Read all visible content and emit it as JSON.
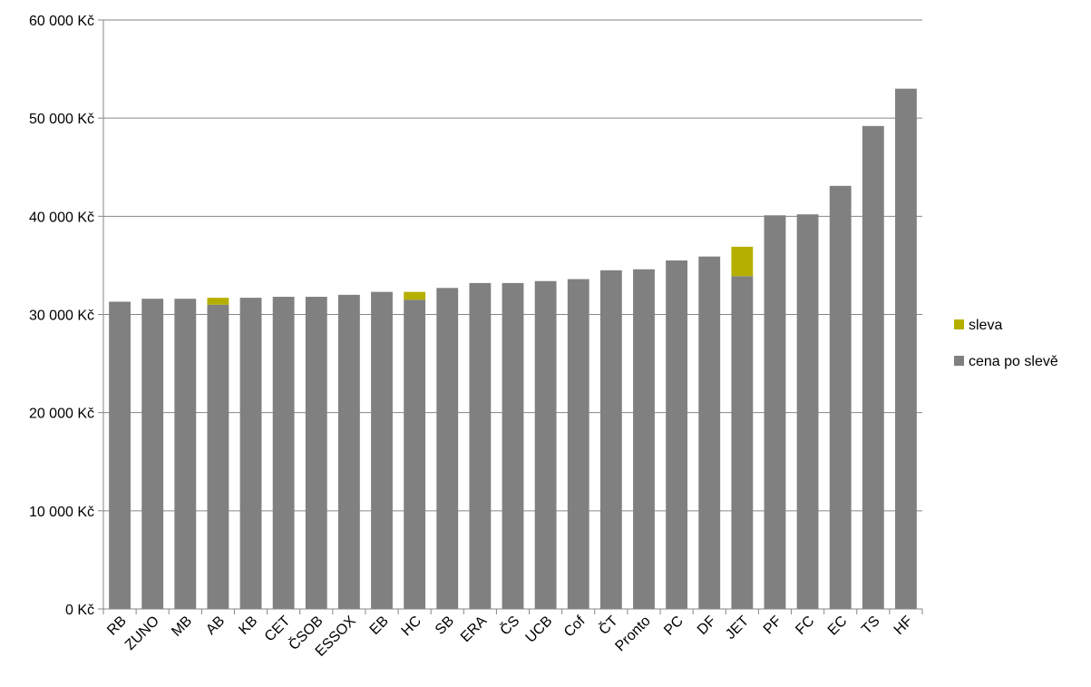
{
  "chart_data": {
    "type": "bar",
    "stacked": true,
    "categories": [
      "RB",
      "ZUNO",
      "MB",
      "AB",
      "KB",
      "CET",
      "ČSOB",
      "ESSOX",
      "EB",
      "HC",
      "SB",
      "ERA",
      "ČS",
      "UCB",
      "Cof",
      "ČT",
      "Pronto",
      "PC",
      "DF",
      "JET",
      "PF",
      "FC",
      "EC",
      "TS",
      "HF"
    ],
    "series": [
      {
        "name": "cena po slevě",
        "color": "#808080",
        "values": [
          31300,
          31600,
          31600,
          31000,
          31700,
          31800,
          31800,
          32000,
          32300,
          31500,
          32700,
          33200,
          33200,
          33400,
          33600,
          34500,
          34600,
          35500,
          35900,
          33900,
          40100,
          40200,
          43100,
          49200,
          53000
        ]
      },
      {
        "name": "sleva",
        "color": "#b5b000",
        "values": [
          0,
          0,
          0,
          700,
          0,
          0,
          0,
          0,
          0,
          800,
          0,
          0,
          0,
          0,
          0,
          0,
          0,
          0,
          0,
          3000,
          0,
          0,
          0,
          0,
          0
        ]
      }
    ],
    "y_ticks": [
      "0 Kč",
      "10 000 Kč",
      "20 000 Kč",
      "30 000 Kč",
      "40 000 Kč",
      "50 000 Kč",
      "60 000 Kč"
    ],
    "ylim": [
      0,
      60000
    ],
    "y_step": 10000,
    "grid": true,
    "legend_position": "right",
    "legend_order": [
      "sleva",
      "cena po slevě"
    ],
    "title": "",
    "xlabel": "",
    "ylabel": ""
  }
}
